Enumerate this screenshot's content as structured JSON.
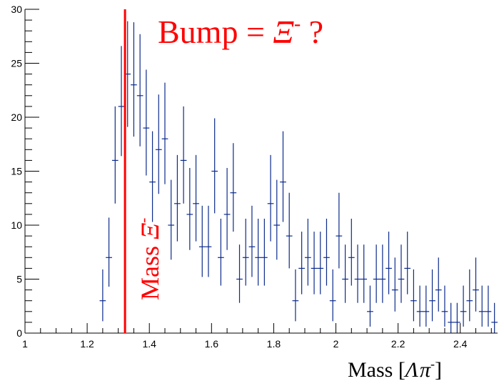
{
  "chart_data": {
    "type": "histogram-errorbars",
    "xlabel_main": "Mass [",
    "xlabel_lambda": "Λ",
    "xlabel_pi": "π",
    "xlabel_sup": "-",
    "xlabel_close": "]",
    "title_main": "Bump = ",
    "title_xi": "Ξ",
    "title_sup": "-",
    "title_q": " ?",
    "vline_label_main": "Mass ",
    "vline_label_xi": "Ξ",
    "vline_label_sup": "-",
    "vline_x": 1.3217,
    "xlim": [
      1.0,
      2.52
    ],
    "ylim": [
      0,
      30
    ],
    "x_major_ticks": [
      1,
      1.2,
      1.4,
      1.6,
      1.8,
      2,
      2.2,
      2.4
    ],
    "x_tick_labels": [
      "1",
      "1.2",
      "1.4",
      "1.6",
      "1.8",
      "2",
      "2.2",
      "2.4"
    ],
    "y_major_ticks": [
      0,
      5,
      10,
      15,
      20,
      25,
      30
    ],
    "y_tick_labels": [
      "0",
      "5",
      "10",
      "15",
      "20",
      "25",
      "30"
    ],
    "bin_width": 0.02,
    "bin_centers": [
      1.25,
      1.27,
      1.29,
      1.31,
      1.33,
      1.35,
      1.37,
      1.39,
      1.41,
      1.43,
      1.45,
      1.47,
      1.49,
      1.51,
      1.53,
      1.55,
      1.57,
      1.59,
      1.61,
      1.63,
      1.65,
      1.67,
      1.69,
      1.71,
      1.73,
      1.75,
      1.77,
      1.79,
      1.81,
      1.83,
      1.85,
      1.87,
      1.89,
      1.91,
      1.93,
      1.95,
      1.97,
      1.99,
      2.01,
      2.03,
      2.05,
      2.07,
      2.09,
      2.11,
      2.13,
      2.15,
      2.17,
      2.19,
      2.21,
      2.23,
      2.25,
      2.27,
      2.29,
      2.31,
      2.33,
      2.35,
      2.37,
      2.39,
      2.41,
      2.43,
      2.45,
      2.47,
      2.49,
      2.51
    ],
    "counts": [
      3,
      7,
      16,
      21,
      24,
      23,
      22,
      19,
      14,
      17,
      18,
      10,
      12,
      16,
      11,
      12,
      8,
      8,
      15,
      7,
      11,
      13,
      5,
      7,
      8,
      7,
      7,
      12,
      10,
      14,
      9,
      3,
      6,
      7,
      6,
      6,
      7,
      3,
      9,
      5,
      7,
      5,
      5,
      2,
      5,
      5,
      6,
      4,
      5,
      6,
      3,
      2,
      2,
      3,
      4,
      2,
      1,
      1,
      2,
      3,
      4,
      2,
      2,
      1
    ],
    "errors_low": [
      1.9,
      2.7,
      4.0,
      4.6,
      4.9,
      4.8,
      4.7,
      4.4,
      3.7,
      4.1,
      4.2,
      3.2,
      3.5,
      4.0,
      3.3,
      3.5,
      2.8,
      2.8,
      3.9,
      2.6,
      3.3,
      3.6,
      2.2,
      2.6,
      2.8,
      2.6,
      2.6,
      3.5,
      3.2,
      3.7,
      3.0,
      1.9,
      2.4,
      2.6,
      2.4,
      2.4,
      2.6,
      1.9,
      3.0,
      2.2,
      2.6,
      2.2,
      2.2,
      1.4,
      2.2,
      2.2,
      2.4,
      2.0,
      2.2,
      2.4,
      1.9,
      1.4,
      1.4,
      1.9,
      2.0,
      1.4,
      1.0,
      1.0,
      1.4,
      1.9,
      2.0,
      1.4,
      1.4,
      1.0
    ],
    "errors_high": [
      2.9,
      3.7,
      5.0,
      5.6,
      4.9,
      5.8,
      5.7,
      5.4,
      4.7,
      5.1,
      5.2,
      4.2,
      4.5,
      5.0,
      4.3,
      4.5,
      3.8,
      3.8,
      4.9,
      3.6,
      4.3,
      4.6,
      3.2,
      3.6,
      3.8,
      3.6,
      3.6,
      4.5,
      4.2,
      4.7,
      4.0,
      2.9,
      3.4,
      3.6,
      3.4,
      3.4,
      3.6,
      2.9,
      4.0,
      3.2,
      3.6,
      3.2,
      3.2,
      2.4,
      3.2,
      3.2,
      3.4,
      3.0,
      3.2,
      3.4,
      2.9,
      2.4,
      2.4,
      2.9,
      3.0,
      2.4,
      1.8,
      1.8,
      2.4,
      2.9,
      3.0,
      2.4,
      2.4,
      1.8
    ],
    "colors": {
      "data": "#0b2a8c",
      "annotation": "#ff0000",
      "axis": "#000000"
    },
    "grid": false,
    "legend": "none"
  }
}
